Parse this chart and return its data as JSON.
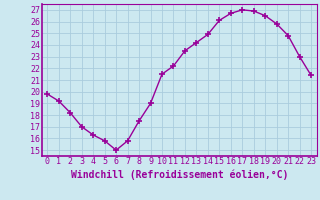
{
  "x": [
    0,
    1,
    2,
    3,
    4,
    5,
    6,
    7,
    8,
    9,
    10,
    11,
    12,
    13,
    14,
    15,
    16,
    17,
    18,
    19,
    20,
    21,
    22,
    23
  ],
  "y": [
    19.8,
    19.2,
    18.2,
    17.0,
    16.3,
    15.8,
    15.0,
    15.8,
    17.5,
    19.0,
    21.5,
    22.2,
    23.5,
    24.2,
    24.9,
    26.1,
    26.7,
    27.0,
    26.9,
    26.5,
    25.8,
    24.8,
    23.0,
    21.4
  ],
  "line_color": "#990099",
  "marker": "+",
  "marker_size": 4,
  "xlabel": "Windchill (Refroidissement éolien,°C)",
  "ylabel_ticks": [
    15,
    16,
    17,
    18,
    19,
    20,
    21,
    22,
    23,
    24,
    25,
    26,
    27
  ],
  "xlim": [
    -0.5,
    23.5
  ],
  "ylim": [
    14.5,
    27.5
  ],
  "bg_color": "#cce8f0",
  "grid_color": "#aaccdd",
  "tick_color": "#990099",
  "label_color": "#990099",
  "font_size": 6,
  "xlabel_fontsize": 7
}
